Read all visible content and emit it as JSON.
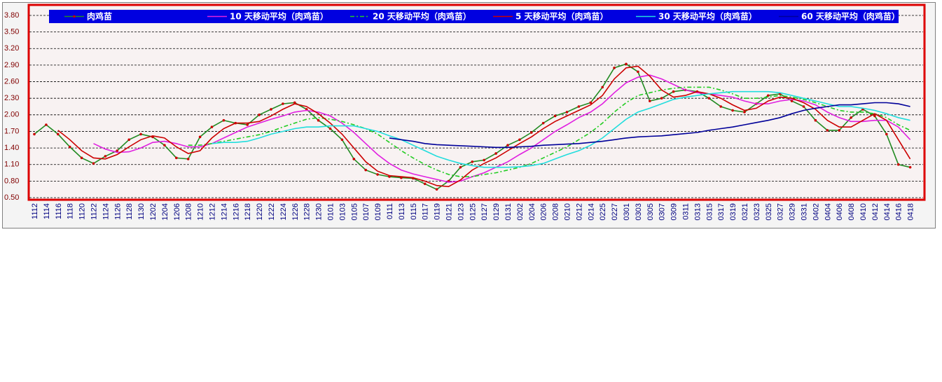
{
  "chart_data": {
    "type": "line",
    "categories": [
      "1112",
      "1114",
      "1116",
      "1118",
      "1120",
      "1122",
      "1124",
      "1126",
      "1128",
      "1130",
      "1202",
      "1204",
      "1206",
      "1208",
      "1210",
      "1212",
      "1214",
      "1216",
      "1218",
      "1220",
      "1222",
      "1224",
      "1226",
      "1228",
      "1230",
      "0101",
      "0103",
      "0105",
      "0107",
      "0109",
      "0111",
      "0113",
      "0115",
      "0117",
      "0119",
      "0121",
      "0123",
      "0125",
      "0127",
      "0129",
      "0131",
      "0202",
      "0204",
      "0206",
      "0208",
      "0210",
      "0212",
      "0214",
      "0225",
      "0227",
      "0301",
      "0303",
      "0305",
      "0307",
      "0309",
      "0311",
      "0313",
      "0315",
      "0317",
      "0319",
      "0321",
      "0323",
      "0325",
      "0327",
      "0329",
      "0331",
      "0402",
      "0404",
      "0406",
      "0408",
      "0410",
      "0412",
      "0414",
      "0416",
      "0418"
    ],
    "series": [
      {
        "name": "肉鸡苗",
        "color": "#228b22",
        "marker_color": "#cc0000",
        "values": [
          1.65,
          1.82,
          1.65,
          1.42,
          1.22,
          1.12,
          1.25,
          1.35,
          1.55,
          1.65,
          1.6,
          1.45,
          1.22,
          1.2,
          1.6,
          1.78,
          1.9,
          1.85,
          1.82,
          2.0,
          2.1,
          2.2,
          2.22,
          2.1,
          1.9,
          1.75,
          1.55,
          1.2,
          1.0,
          0.92,
          0.88,
          0.86,
          0.85,
          0.75,
          0.65,
          0.8,
          1.05,
          1.15,
          1.18,
          1.3,
          1.45,
          1.55,
          1.68,
          1.85,
          1.98,
          2.05,
          2.15,
          2.22,
          2.5,
          2.85,
          2.92,
          2.78,
          2.25,
          2.3,
          2.42,
          2.45,
          2.42,
          2.3,
          2.15,
          2.08,
          2.05,
          2.2,
          2.35,
          2.38,
          2.25,
          2.15,
          1.9,
          1.72,
          1.72,
          1.95,
          2.1,
          1.98,
          1.65,
          1.1,
          1.05
        ]
      },
      {
        "name": "10 天移动平均（肉鸡苗）",
        "color": "#e020e0",
        "values": [
          null,
          null,
          null,
          null,
          null,
          1.48,
          1.38,
          1.32,
          1.33,
          1.4,
          1.5,
          1.52,
          1.48,
          1.42,
          1.42,
          1.48,
          1.58,
          1.68,
          1.78,
          1.85,
          1.92,
          1.98,
          2.05,
          2.08,
          2.05,
          1.98,
          1.85,
          1.68,
          1.48,
          1.28,
          1.12,
          1.0,
          0.93,
          0.88,
          0.83,
          0.78,
          0.8,
          0.88,
          0.95,
          1.05,
          1.15,
          1.28,
          1.4,
          1.55,
          1.7,
          1.82,
          1.95,
          2.05,
          2.2,
          2.4,
          2.58,
          2.68,
          2.72,
          2.65,
          2.55,
          2.45,
          2.4,
          2.38,
          2.35,
          2.32,
          2.25,
          2.2,
          2.2,
          2.25,
          2.28,
          2.25,
          2.18,
          2.05,
          1.95,
          1.88,
          1.88,
          1.9,
          1.9,
          1.78,
          1.55
        ]
      },
      {
        "name": "20 天移动平均（肉鸡苗）",
        "color": "#22cc22",
        "dash": "dashdot",
        "values": [
          null,
          null,
          null,
          null,
          null,
          null,
          null,
          null,
          null,
          null,
          null,
          null,
          null,
          1.45,
          1.45,
          1.48,
          1.52,
          1.56,
          1.6,
          1.64,
          1.7,
          1.78,
          1.85,
          1.92,
          1.95,
          1.92,
          1.88,
          1.82,
          1.75,
          1.65,
          1.5,
          1.35,
          1.22,
          1.1,
          1.0,
          0.92,
          0.88,
          0.88,
          0.92,
          0.95,
          1.0,
          1.05,
          1.12,
          1.22,
          1.32,
          1.42,
          1.55,
          1.68,
          1.85,
          2.05,
          2.22,
          2.35,
          2.4,
          2.45,
          2.48,
          2.5,
          2.5,
          2.5,
          2.45,
          2.38,
          2.3,
          2.3,
          2.32,
          2.35,
          2.32,
          2.28,
          2.22,
          2.15,
          2.08,
          2.05,
          2.05,
          2.02,
          1.95,
          1.82,
          1.72
        ]
      },
      {
        "name": "5 天移动平均（肉鸡苗）",
        "color": "#cc0000",
        "values": [
          null,
          null,
          1.72,
          1.55,
          1.35,
          1.22,
          1.2,
          1.28,
          1.42,
          1.55,
          1.62,
          1.58,
          1.42,
          1.3,
          1.35,
          1.58,
          1.75,
          1.85,
          1.85,
          1.88,
          1.98,
          2.1,
          2.2,
          2.15,
          2.02,
          1.85,
          1.65,
          1.4,
          1.15,
          0.98,
          0.9,
          0.88,
          0.86,
          0.8,
          0.72,
          0.7,
          0.82,
          1.0,
          1.12,
          1.22,
          1.35,
          1.48,
          1.6,
          1.75,
          1.88,
          1.98,
          2.08,
          2.18,
          2.35,
          2.65,
          2.85,
          2.88,
          2.7,
          2.45,
          2.32,
          2.35,
          2.42,
          2.38,
          2.3,
          2.18,
          2.08,
          2.12,
          2.25,
          2.32,
          2.3,
          2.22,
          2.1,
          1.9,
          1.78,
          1.78,
          1.9,
          2.02,
          1.9,
          1.55,
          1.2
        ]
      },
      {
        "name": "30 天移动平均（肉鸡苗）",
        "color": "#22dddd",
        "values": [
          null,
          null,
          null,
          null,
          null,
          null,
          null,
          null,
          null,
          null,
          null,
          null,
          null,
          null,
          null,
          1.48,
          1.5,
          1.5,
          1.52,
          1.58,
          1.65,
          1.7,
          1.75,
          1.78,
          1.78,
          1.8,
          1.8,
          1.8,
          1.75,
          1.7,
          1.62,
          1.55,
          1.45,
          1.35,
          1.25,
          1.18,
          1.12,
          1.08,
          1.05,
          1.05,
          1.05,
          1.06,
          1.08,
          1.12,
          1.2,
          1.28,
          1.35,
          1.45,
          1.58,
          1.75,
          1.92,
          2.05,
          2.12,
          2.2,
          2.28,
          2.32,
          2.35,
          2.38,
          2.4,
          2.42,
          2.42,
          2.42,
          2.42,
          2.4,
          2.35,
          2.3,
          2.25,
          2.2,
          2.15,
          2.15,
          2.12,
          2.08,
          2.02,
          1.95,
          1.9
        ]
      },
      {
        "name": "60 天移动平均（肉鸡苗）",
        "color": "#000099",
        "values": [
          null,
          null,
          null,
          null,
          null,
          null,
          null,
          null,
          null,
          null,
          null,
          null,
          null,
          null,
          null,
          null,
          null,
          null,
          null,
          null,
          null,
          null,
          null,
          null,
          null,
          null,
          null,
          null,
          null,
          null,
          1.58,
          1.55,
          1.52,
          1.48,
          1.46,
          1.45,
          1.44,
          1.43,
          1.42,
          1.41,
          1.41,
          1.42,
          1.43,
          1.45,
          1.46,
          1.47,
          1.48,
          1.5,
          1.52,
          1.55,
          1.58,
          1.6,
          1.61,
          1.62,
          1.64,
          1.66,
          1.68,
          1.72,
          1.75,
          1.78,
          1.82,
          1.86,
          1.9,
          1.95,
          2.02,
          2.08,
          2.12,
          2.15,
          2.18,
          2.18,
          2.2,
          2.22,
          2.22,
          2.2,
          2.15
        ]
      }
    ],
    "ylim": [
      0.5,
      3.8
    ],
    "yticks": [
      {
        "value": 0.5,
        "label": "0.50"
      },
      {
        "value": 0.8,
        "label": "0.80"
      },
      {
        "value": 1.1,
        "label": "1.10"
      },
      {
        "value": 1.4,
        "label": "1.40"
      },
      {
        "value": 1.7,
        "label": "1.70"
      },
      {
        "value": 2.0,
        "label": "2.00"
      },
      {
        "value": 2.3,
        "label": "2.30"
      },
      {
        "value": 2.6,
        "label": "2.60"
      },
      {
        "value": 2.9,
        "label": "2.90"
      },
      {
        "value": 3.2,
        "label": "3.20"
      },
      {
        "value": 3.5,
        "label": "3.50"
      },
      {
        "value": 3.8,
        "label": "3.80"
      }
    ],
    "grid": true,
    "legend": "top"
  }
}
